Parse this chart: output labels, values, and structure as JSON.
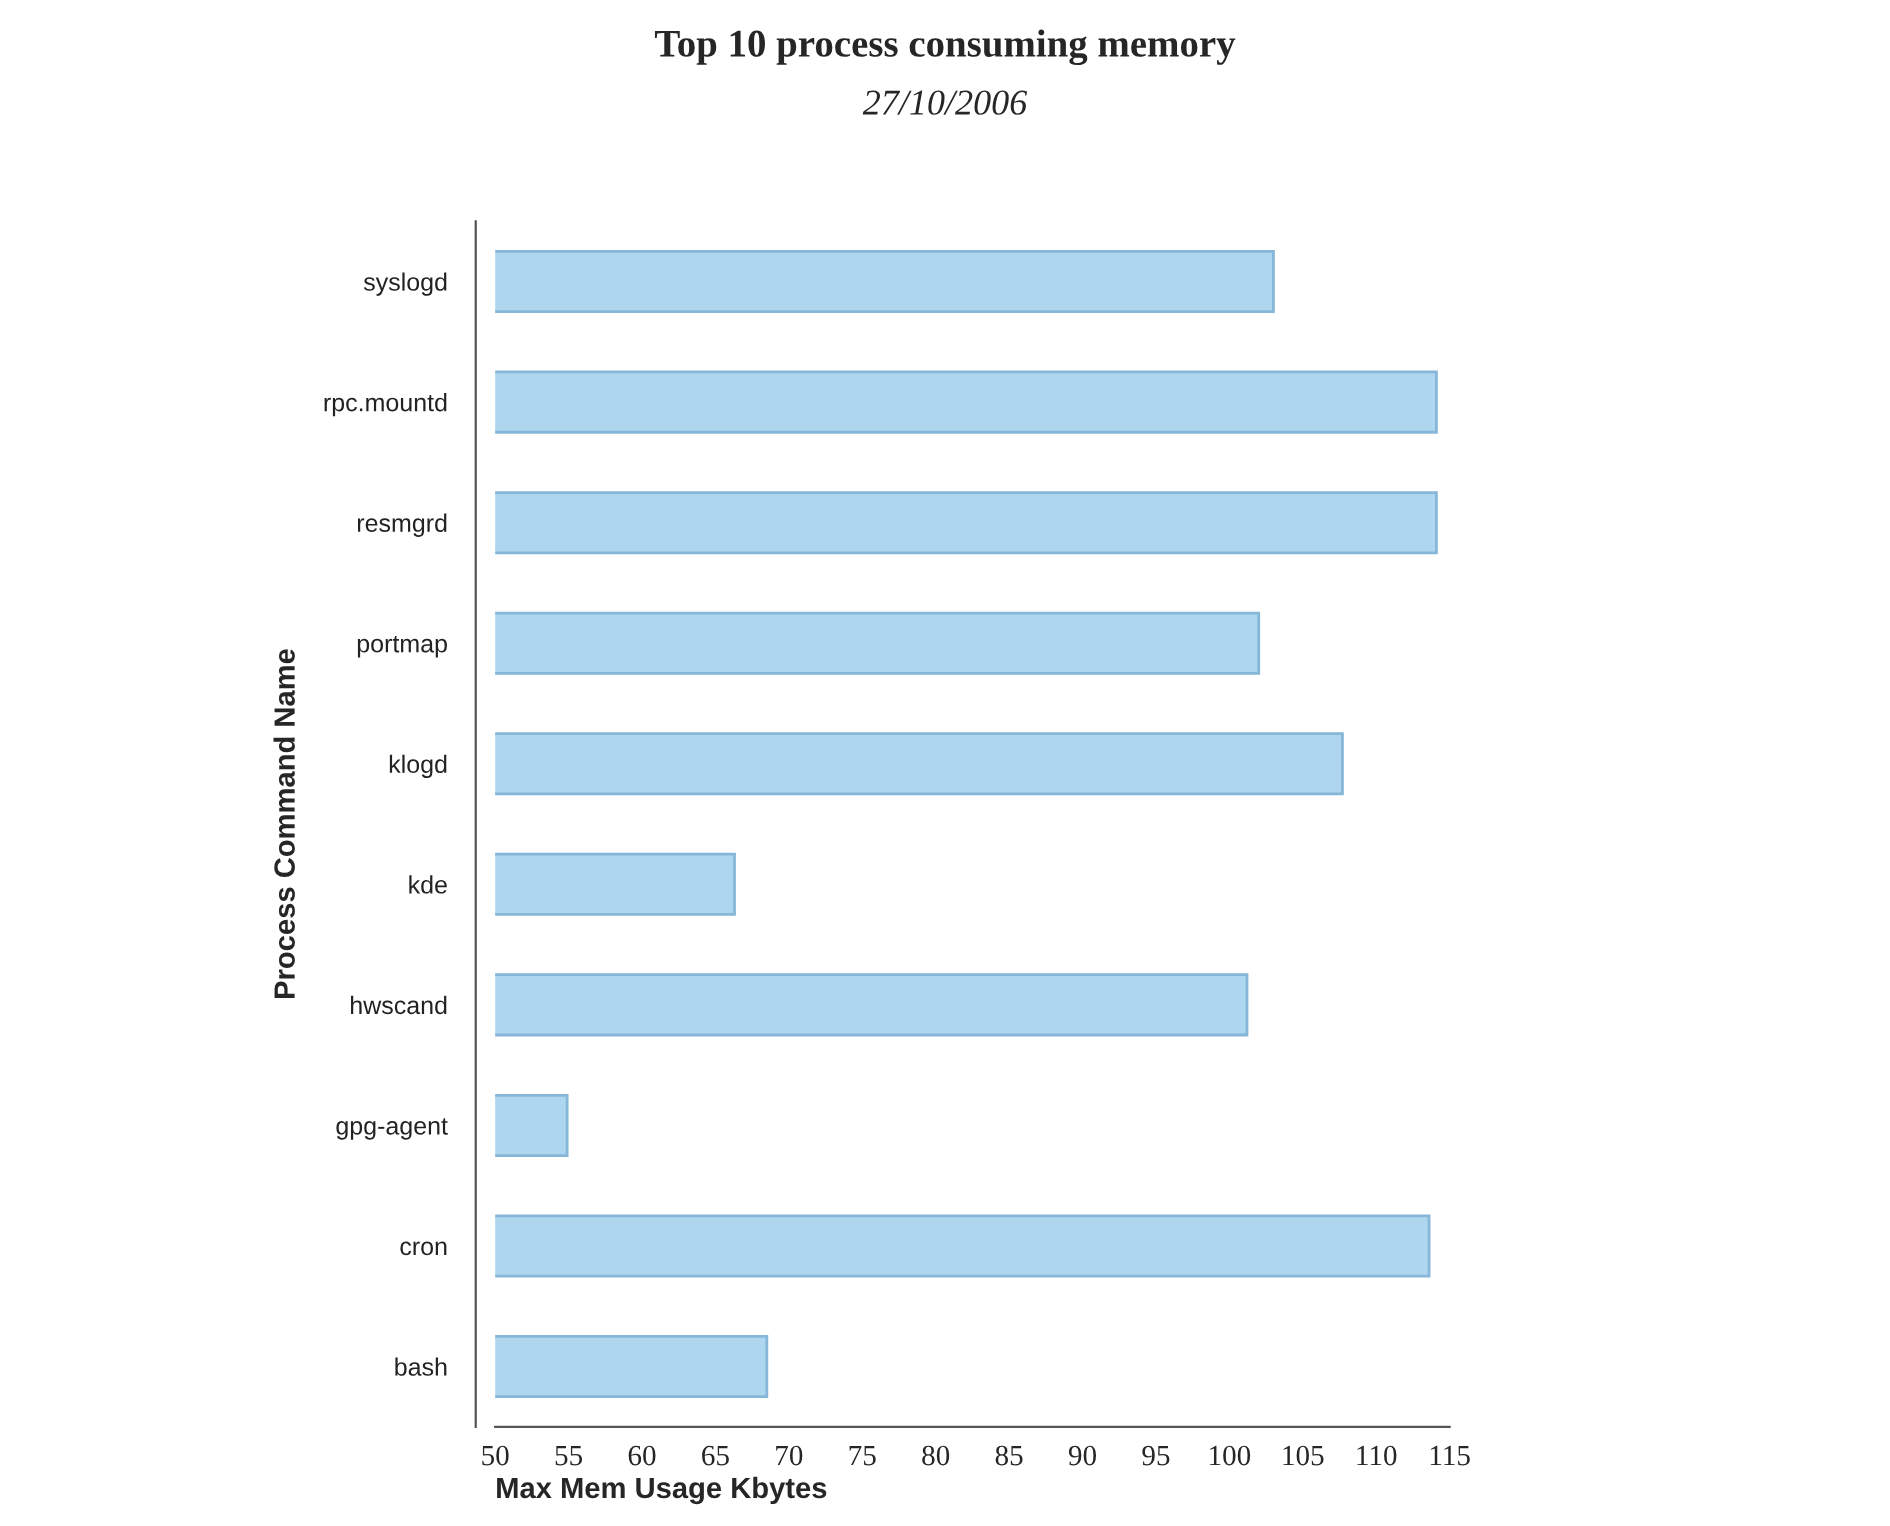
{
  "chart_data": {
    "type": "bar",
    "orientation": "horizontal",
    "title": "Top 10 process consuming memory",
    "subtitle": "27/10/2006",
    "xlabel": "Max Mem Usage Kbytes",
    "ylabel": "Process Command Name",
    "categories": [
      "syslogd",
      "rpc.mountd",
      "resmgrd",
      "portmap",
      "klogd",
      "kde",
      "hwscand",
      "gpg-agent",
      "cron",
      "bash"
    ],
    "values": [
      103,
      114.1,
      114.1,
      102,
      107.7,
      66.3,
      101.2,
      54.9,
      113.6,
      68.5
    ],
    "color": "#aed6ef",
    "xlim": [
      50,
      115
    ],
    "xticks": [
      50,
      55,
      60,
      65,
      70,
      75,
      80,
      85,
      90,
      95,
      100,
      105,
      110,
      115
    ],
    "grid": false,
    "legend": false
  }
}
